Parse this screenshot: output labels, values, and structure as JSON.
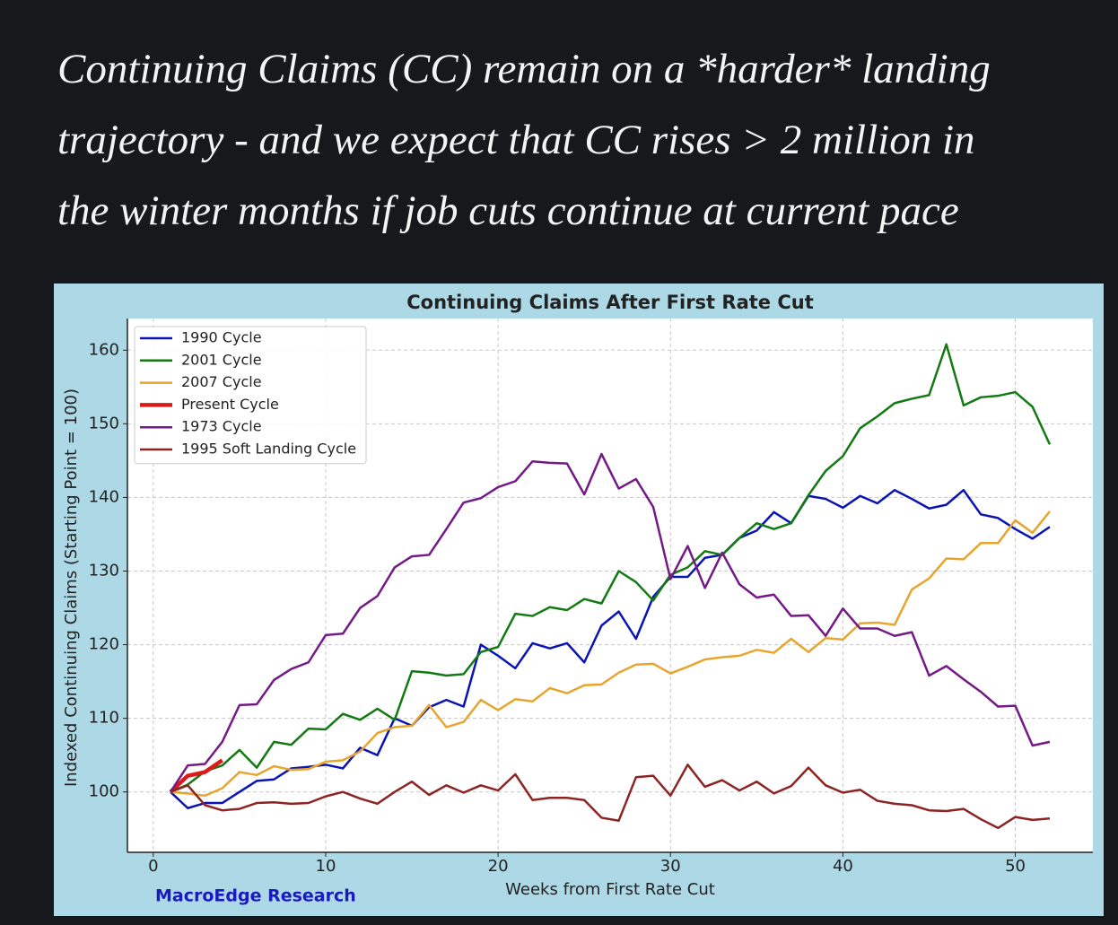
{
  "headline_lines": [
    "Continuing Claims (CC) remain on a *harder* landing",
    "trajectory - and we expect that CC rises > 2 million in",
    "the winter months if job cuts continue at current pace"
  ],
  "chart_data": {
    "type": "line",
    "title": "Continuing Claims After First Rate Cut",
    "x_label": "Weeks from First Rate Cut",
    "y_label": "Indexed Continuing Claims (Starting Point = 100)",
    "watermark": "MacroEdge Research",
    "x": [
      1,
      2,
      3,
      4,
      5,
      6,
      7,
      8,
      9,
      10,
      11,
      12,
      13,
      14,
      15,
      16,
      17,
      18,
      19,
      20,
      21,
      22,
      23,
      24,
      25,
      26,
      27,
      28,
      29,
      30,
      31,
      32,
      33,
      34,
      35,
      36,
      37,
      38,
      39,
      40,
      41,
      42,
      43,
      44,
      45,
      46,
      47,
      48,
      49,
      50,
      51,
      52
    ],
    "xlim": [
      -1.5,
      54.5
    ],
    "xticks": [
      0,
      10,
      20,
      30,
      40,
      50
    ],
    "ylim": [
      91.8,
      164.3
    ],
    "yticks": [
      100,
      110,
      120,
      130,
      140,
      150,
      160
    ],
    "grid": true,
    "legend": "upper left",
    "series": [
      {
        "name": "1990 Cycle",
        "color": "#0a14b4",
        "width": 2.5,
        "values": [
          100,
          97.8,
          98.5,
          98.5,
          100,
          101.5,
          101.7,
          103.2,
          103.4,
          103.7,
          103.2,
          106,
          105,
          110,
          109,
          111.5,
          112.5,
          111.6,
          120,
          118.5,
          116.8,
          120.2,
          119.5,
          120.2,
          117.6,
          122.6,
          124.5,
          120.8,
          126.5,
          129.2,
          129.2,
          131.8,
          132.2,
          134.5,
          135.5,
          138,
          136.5,
          140.2,
          139.8,
          138.6,
          140.2,
          139.2,
          141,
          139.8,
          138.5,
          139,
          141,
          137.7,
          137.2,
          135.7,
          134.4,
          136
        ]
      },
      {
        "name": "2001 Cycle",
        "color": "#137a13",
        "width": 2.5,
        "values": [
          100,
          101,
          102.8,
          103.6,
          105.7,
          103.3,
          106.8,
          106.4,
          108.6,
          108.5,
          110.6,
          109.8,
          111.3,
          109.8,
          116.4,
          116.2,
          115.8,
          116,
          119,
          119.7,
          124.2,
          123.9,
          125.1,
          124.7,
          126.2,
          125.6,
          130,
          128.5,
          126,
          129.5,
          130.5,
          132.7,
          132.2,
          134.5,
          136.5,
          135.7,
          136.5,
          140.3,
          143.6,
          145.6,
          149.4,
          151,
          152.8,
          153.4,
          153.9,
          160.8,
          152.5,
          153.6,
          153.8,
          154.3,
          152.3,
          147.2
        ]
      },
      {
        "name": "2007 Cycle",
        "color": "#e8a52e",
        "width": 2.5,
        "values": [
          100,
          99.8,
          99.5,
          100.5,
          102.7,
          102.3,
          103.5,
          103,
          103.1,
          104.1,
          104.3,
          105.5,
          108,
          108.8,
          109,
          111.8,
          108.8,
          109.5,
          112.5,
          111.1,
          112.6,
          112.3,
          114.1,
          113.4,
          114.5,
          114.6,
          116.2,
          117.3,
          117.4,
          116.1,
          117,
          118,
          118.3,
          118.5,
          119.3,
          118.9,
          120.8,
          119,
          120.9,
          120.7,
          122.9,
          123,
          122.7,
          127.5,
          129,
          131.7,
          131.6,
          133.8,
          133.8,
          136.9,
          135.2,
          138.1
        ]
      },
      {
        "name": "Present Cycle",
        "color": "#dd1a1a",
        "width": 4.5,
        "values": [
          100,
          102.2,
          102.7,
          104.3,
          null,
          null,
          null,
          null,
          null,
          null,
          null,
          null,
          null,
          null,
          null,
          null,
          null,
          null,
          null,
          null,
          null,
          null,
          null,
          null,
          null,
          null,
          null,
          null,
          null,
          null,
          null,
          null,
          null,
          null,
          null,
          null,
          null,
          null,
          null,
          null,
          null,
          null,
          null,
          null,
          null,
          null,
          null,
          null,
          null,
          null,
          null,
          null
        ]
      },
      {
        "name": "1973 Cycle",
        "color": "#741a86",
        "width": 2.5,
        "values": [
          100,
          103.6,
          103.8,
          106.8,
          111.8,
          111.9,
          115.2,
          116.7,
          117.6,
          121.3,
          121.5,
          125,
          126.6,
          130.5,
          132,
          132.2,
          135.7,
          139.3,
          139.9,
          141.4,
          142.2,
          144.9,
          144.7,
          144.6,
          140.4,
          145.9,
          141.2,
          142.5,
          138.7,
          128.9,
          133.4,
          127.7,
          132.5,
          128.2,
          126.4,
          126.8,
          123.9,
          124,
          121.2,
          124.9,
          122.2,
          122.2,
          121.2,
          121.7,
          115.8,
          117.1,
          115.3,
          113.6,
          111.6,
          111.7,
          106.3,
          106.8
        ]
      },
      {
        "name": "1995 Soft Landing Cycle",
        "color": "#8c2424",
        "width": 2.5,
        "values": [
          100,
          100.9,
          98.2,
          97.5,
          97.7,
          98.5,
          98.6,
          98.4,
          98.5,
          99.4,
          100,
          99.1,
          98.4,
          100,
          101.4,
          99.6,
          100.9,
          99.9,
          100.9,
          100.2,
          102.4,
          98.9,
          99.2,
          99.2,
          98.9,
          96.5,
          96.1,
          102,
          102.2,
          99.5,
          103.7,
          100.7,
          101.6,
          100.2,
          101.4,
          99.8,
          100.8,
          103.3,
          100.9,
          99.9,
          100.3,
          98.8,
          98.4,
          98.2,
          97.5,
          97.4,
          97.7,
          96.3,
          95.1,
          96.6,
          96.2,
          96.4
        ]
      }
    ]
  }
}
